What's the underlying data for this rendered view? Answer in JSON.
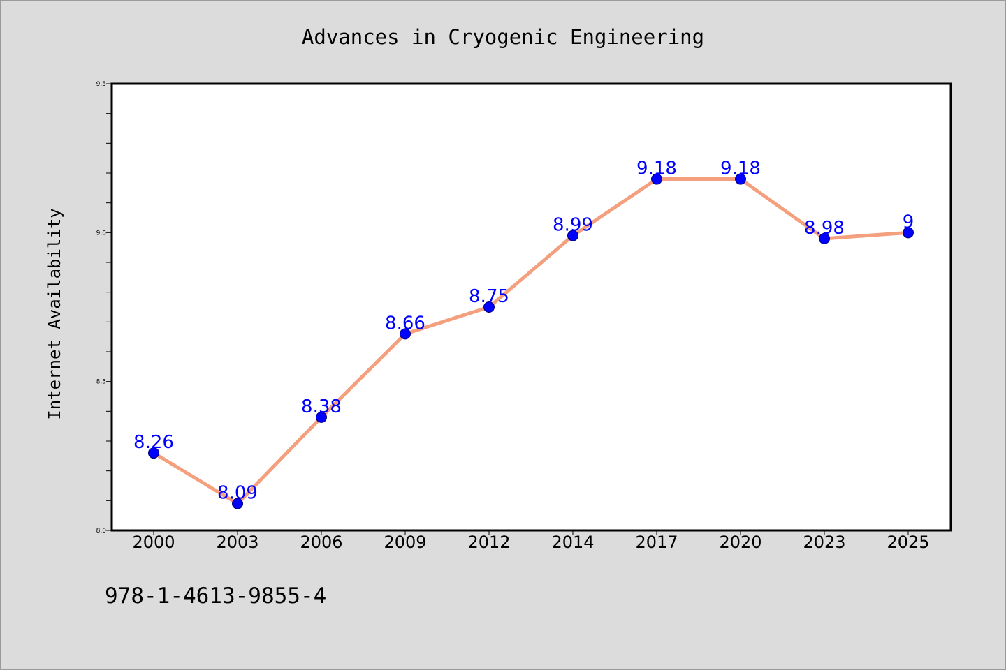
{
  "chart_data": {
    "type": "line",
    "title": "Advances in Cryogenic Engineering",
    "xlabel": "",
    "ylabel": "Internet Availability",
    "categories": [
      "2000",
      "2003",
      "2006",
      "2009",
      "2012",
      "2014",
      "2017",
      "2020",
      "2023",
      "2025"
    ],
    "series": [
      {
        "values": [
          8.26,
          8.09,
          8.38,
          8.66,
          8.75,
          8.99,
          9.18,
          9.18,
          8.98,
          9.0
        ]
      }
    ],
    "data_labels": [
      "8.26",
      "8.09",
      "8.38",
      "8.66",
      "8.75",
      "8.99",
      "9.18",
      "9.18",
      "8.98",
      "9"
    ],
    "ylim": [
      8.0,
      9.5
    ],
    "yticks": [
      "8.0",
      "8.5",
      "9.0",
      "9.5"
    ],
    "grid": false,
    "legend": "none",
    "colors": {
      "line": "#f4a07e",
      "marker": "#0000ff",
      "data_label": "#0000ff",
      "plot_background": "#ffffff",
      "figure_background": "#dcdcdc"
    }
  },
  "footer": {
    "isbn": "978-1-4613-9855-4"
  }
}
